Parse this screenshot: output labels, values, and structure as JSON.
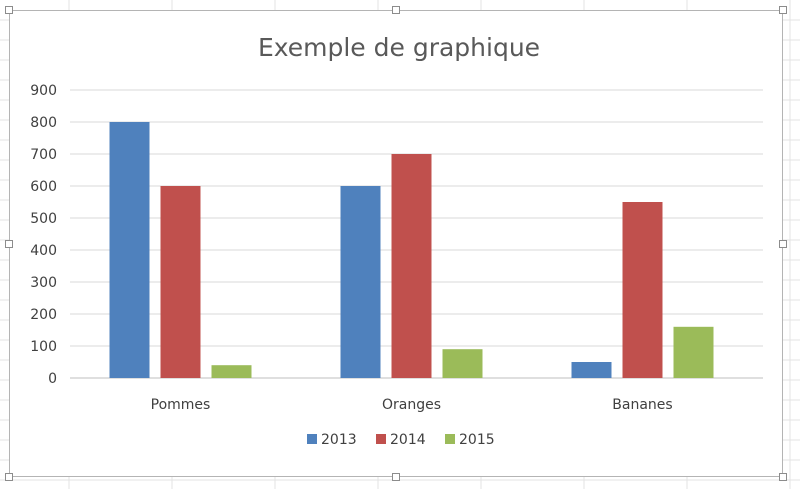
{
  "chart_data": {
    "type": "bar",
    "title": "Exemple de graphique",
    "xlabel": "",
    "ylabel": "",
    "categories": [
      "Pommes",
      "Oranges",
      "Bananes"
    ],
    "series": [
      {
        "name": "2013",
        "values": [
          800,
          600,
          50
        ],
        "color": "#4f81bd"
      },
      {
        "name": "2014",
        "values": [
          600,
          700,
          550
        ],
        "color": "#c0504d"
      },
      {
        "name": "2015",
        "values": [
          40,
          90,
          160
        ],
        "color": "#9bbb59"
      }
    ],
    "ylim": [
      0,
      900
    ],
    "yticks": [
      "0",
      "100",
      "200",
      "300",
      "400",
      "500",
      "600",
      "700",
      "800",
      "900"
    ],
    "grid": true,
    "legend_position": "bottom"
  }
}
